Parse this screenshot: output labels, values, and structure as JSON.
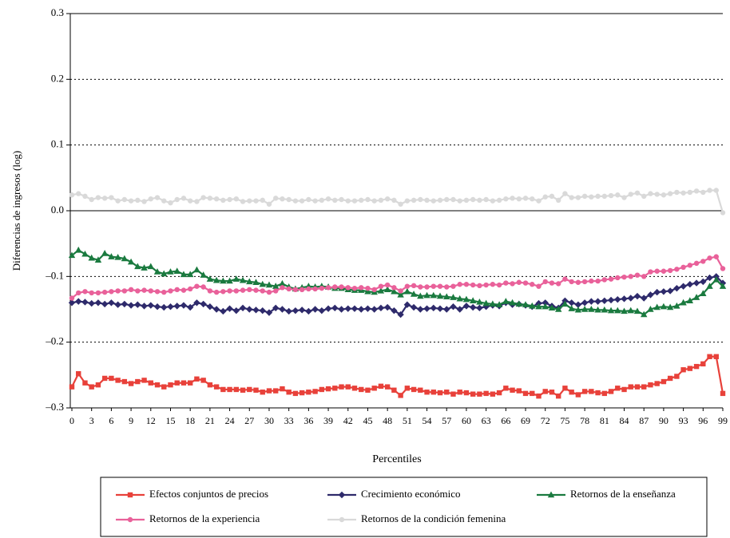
{
  "chart_data": {
    "type": "line",
    "x_label": "Percentiles",
    "y_label": "Diferencias de ingresos (log)",
    "x": [
      0,
      1,
      2,
      3,
      4,
      5,
      6,
      7,
      8,
      9,
      10,
      11,
      12,
      13,
      14,
      15,
      16,
      17,
      18,
      19,
      20,
      21,
      22,
      23,
      24,
      25,
      26,
      27,
      28,
      29,
      30,
      31,
      32,
      33,
      34,
      35,
      36,
      37,
      38,
      39,
      40,
      41,
      42,
      43,
      44,
      45,
      46,
      47,
      48,
      49,
      50,
      51,
      52,
      53,
      54,
      55,
      56,
      57,
      58,
      59,
      60,
      61,
      62,
      63,
      64,
      65,
      66,
      67,
      68,
      69,
      70,
      71,
      72,
      73,
      74,
      75,
      76,
      77,
      78,
      79,
      80,
      81,
      82,
      83,
      84,
      85,
      86,
      87,
      88,
      89,
      90,
      91,
      92,
      93,
      94,
      95,
      96,
      97,
      98,
      99
    ],
    "xlim": [
      0,
      99
    ],
    "xticks": [
      0,
      3,
      6,
      9,
      12,
      15,
      18,
      21,
      24,
      27,
      30,
      33,
      36,
      39,
      42,
      45,
      48,
      51,
      54,
      57,
      60,
      63,
      66,
      69,
      72,
      75,
      78,
      81,
      84,
      87,
      90,
      93,
      96,
      99
    ],
    "ylim": [
      -0.3,
      0.3
    ],
    "yticks": [
      {
        "value": -0.3,
        "label": "–0.3"
      },
      {
        "value": -0.2,
        "label": "–0.2"
      },
      {
        "value": -0.1,
        "label": "–0.1"
      },
      {
        "value": 0,
        "label": "0.0"
      },
      0.1,
      0.2,
      0.3
    ],
    "grid": true,
    "legend": "bottom",
    "series": [
      {
        "name": "Efectos conjuntos de precios",
        "color": "#e8413a",
        "marker": "square",
        "values": [
          -0.268,
          -0.248,
          -0.262,
          -0.268,
          -0.265,
          -0.255,
          -0.255,
          -0.258,
          -0.26,
          -0.263,
          -0.26,
          -0.258,
          -0.262,
          -0.265,
          -0.268,
          -0.265,
          -0.262,
          -0.262,
          -0.262,
          -0.256,
          -0.258,
          -0.265,
          -0.268,
          -0.272,
          -0.272,
          -0.272,
          -0.273,
          -0.272,
          -0.273,
          -0.276,
          -0.274,
          -0.274,
          -0.271,
          -0.276,
          -0.278,
          -0.277,
          -0.276,
          -0.275,
          -0.272,
          -0.271,
          -0.27,
          -0.268,
          -0.268,
          -0.27,
          -0.272,
          -0.273,
          -0.27,
          -0.267,
          -0.268,
          -0.273,
          -0.281,
          -0.27,
          -0.272,
          -0.273,
          -0.276,
          -0.276,
          -0.277,
          -0.276,
          -0.279,
          -0.276,
          -0.277,
          -0.279,
          -0.279,
          -0.278,
          -0.279,
          -0.277,
          -0.27,
          -0.273,
          -0.274,
          -0.278,
          -0.278,
          -0.282,
          -0.275,
          -0.276,
          -0.282,
          -0.27,
          -0.276,
          -0.28,
          -0.275,
          -0.275,
          -0.277,
          -0.278,
          -0.275,
          -0.27,
          -0.272,
          -0.268,
          -0.268,
          -0.268,
          -0.265,
          -0.263,
          -0.26,
          -0.255,
          -0.252,
          -0.242,
          -0.24,
          -0.237,
          -0.233,
          -0.222,
          -0.222,
          -0.278
        ]
      },
      {
        "name": "Crecimiento económico",
        "color": "#2e2a6b",
        "marker": "diamond",
        "values": [
          -0.14,
          -0.138,
          -0.139,
          -0.141,
          -0.14,
          -0.142,
          -0.14,
          -0.143,
          -0.142,
          -0.144,
          -0.143,
          -0.145,
          -0.144,
          -0.146,
          -0.147,
          -0.146,
          -0.145,
          -0.144,
          -0.147,
          -0.14,
          -0.142,
          -0.146,
          -0.15,
          -0.153,
          -0.149,
          -0.152,
          -0.148,
          -0.15,
          -0.151,
          -0.152,
          -0.155,
          -0.148,
          -0.15,
          -0.153,
          -0.152,
          -0.151,
          -0.153,
          -0.15,
          -0.152,
          -0.149,
          -0.148,
          -0.15,
          -0.149,
          -0.149,
          -0.15,
          -0.149,
          -0.15,
          -0.148,
          -0.147,
          -0.152,
          -0.158,
          -0.143,
          -0.147,
          -0.15,
          -0.149,
          -0.148,
          -0.149,
          -0.15,
          -0.146,
          -0.15,
          -0.145,
          -0.147,
          -0.148,
          -0.146,
          -0.144,
          -0.145,
          -0.14,
          -0.143,
          -0.142,
          -0.144,
          -0.146,
          -0.141,
          -0.14,
          -0.145,
          -0.148,
          -0.137,
          -0.14,
          -0.143,
          -0.14,
          -0.138,
          -0.138,
          -0.137,
          -0.136,
          -0.135,
          -0.134,
          -0.133,
          -0.13,
          -0.133,
          -0.128,
          -0.124,
          -0.123,
          -0.122,
          -0.118,
          -0.115,
          -0.112,
          -0.11,
          -0.108,
          -0.102,
          -0.1,
          -0.11
        ]
      },
      {
        "name": "Retornos de la enseñanza",
        "color": "#1a7a3f",
        "marker": "triangle",
        "values": [
          -0.068,
          -0.06,
          -0.066,
          -0.072,
          -0.075,
          -0.065,
          -0.07,
          -0.071,
          -0.073,
          -0.078,
          -0.085,
          -0.087,
          -0.085,
          -0.093,
          -0.096,
          -0.093,
          -0.092,
          -0.097,
          -0.097,
          -0.09,
          -0.098,
          -0.104,
          -0.106,
          -0.107,
          -0.107,
          -0.104,
          -0.106,
          -0.108,
          -0.109,
          -0.112,
          -0.113,
          -0.115,
          -0.111,
          -0.116,
          -0.119,
          -0.117,
          -0.115,
          -0.116,
          -0.115,
          -0.116,
          -0.118,
          -0.118,
          -0.12,
          -0.121,
          -0.121,
          -0.123,
          -0.124,
          -0.122,
          -0.12,
          -0.123,
          -0.128,
          -0.123,
          -0.127,
          -0.13,
          -0.129,
          -0.129,
          -0.13,
          -0.131,
          -0.132,
          -0.134,
          -0.135,
          -0.137,
          -0.139,
          -0.141,
          -0.142,
          -0.143,
          -0.138,
          -0.14,
          -0.142,
          -0.143,
          -0.145,
          -0.146,
          -0.146,
          -0.148,
          -0.15,
          -0.142,
          -0.149,
          -0.151,
          -0.15,
          -0.15,
          -0.151,
          -0.151,
          -0.152,
          -0.152,
          -0.153,
          -0.152,
          -0.153,
          -0.158,
          -0.15,
          -0.147,
          -0.146,
          -0.147,
          -0.145,
          -0.14,
          -0.137,
          -0.132,
          -0.126,
          -0.115,
          -0.105,
          -0.115
        ]
      },
      {
        "name": "Retornos de la experiencia",
        "color": "#e9619a",
        "marker": "circle",
        "values": [
          -0.133,
          -0.125,
          -0.123,
          -0.125,
          -0.125,
          -0.124,
          -0.123,
          -0.122,
          -0.122,
          -0.12,
          -0.122,
          -0.121,
          -0.122,
          -0.123,
          -0.124,
          -0.122,
          -0.12,
          -0.121,
          -0.119,
          -0.115,
          -0.116,
          -0.122,
          -0.124,
          -0.123,
          -0.122,
          -0.122,
          -0.121,
          -0.12,
          -0.121,
          -0.122,
          -0.124,
          -0.122,
          -0.117,
          -0.119,
          -0.12,
          -0.12,
          -0.119,
          -0.119,
          -0.118,
          -0.117,
          -0.116,
          -0.116,
          -0.117,
          -0.118,
          -0.117,
          -0.118,
          -0.12,
          -0.115,
          -0.113,
          -0.117,
          -0.122,
          -0.115,
          -0.114,
          -0.116,
          -0.116,
          -0.115,
          -0.115,
          -0.116,
          -0.115,
          -0.112,
          -0.112,
          -0.113,
          -0.114,
          -0.113,
          -0.112,
          -0.113,
          -0.11,
          -0.111,
          -0.109,
          -0.11,
          -0.112,
          -0.115,
          -0.108,
          -0.11,
          -0.111,
          -0.104,
          -0.108,
          -0.109,
          -0.108,
          -0.107,
          -0.107,
          -0.105,
          -0.104,
          -0.102,
          -0.101,
          -0.1,
          -0.098,
          -0.1,
          -0.093,
          -0.092,
          -0.092,
          -0.091,
          -0.089,
          -0.086,
          -0.083,
          -0.08,
          -0.077,
          -0.072,
          -0.07,
          -0.088
        ]
      },
      {
        "name": "Retornos de la condición femenina",
        "color": "#d9d9d9",
        "marker": "circle",
        "values": [
          0.024,
          0.026,
          0.022,
          0.017,
          0.02,
          0.019,
          0.02,
          0.015,
          0.017,
          0.015,
          0.016,
          0.014,
          0.018,
          0.02,
          0.015,
          0.012,
          0.017,
          0.019,
          0.015,
          0.014,
          0.02,
          0.019,
          0.018,
          0.016,
          0.017,
          0.018,
          0.014,
          0.015,
          0.015,
          0.016,
          0.01,
          0.019,
          0.018,
          0.017,
          0.015,
          0.015,
          0.017,
          0.015,
          0.016,
          0.018,
          0.016,
          0.017,
          0.015,
          0.015,
          0.016,
          0.017,
          0.015,
          0.016,
          0.018,
          0.016,
          0.01,
          0.015,
          0.016,
          0.017,
          0.016,
          0.015,
          0.016,
          0.017,
          0.017,
          0.015,
          0.016,
          0.017,
          0.016,
          0.017,
          0.015,
          0.016,
          0.018,
          0.019,
          0.018,
          0.019,
          0.018,
          0.015,
          0.021,
          0.022,
          0.016,
          0.026,
          0.02,
          0.02,
          0.022,
          0.021,
          0.022,
          0.022,
          0.023,
          0.024,
          0.02,
          0.025,
          0.027,
          0.022,
          0.026,
          0.025,
          0.024,
          0.026,
          0.028,
          0.027,
          0.028,
          0.03,
          0.028,
          0.031,
          0.031,
          -0.003
        ]
      }
    ]
  }
}
